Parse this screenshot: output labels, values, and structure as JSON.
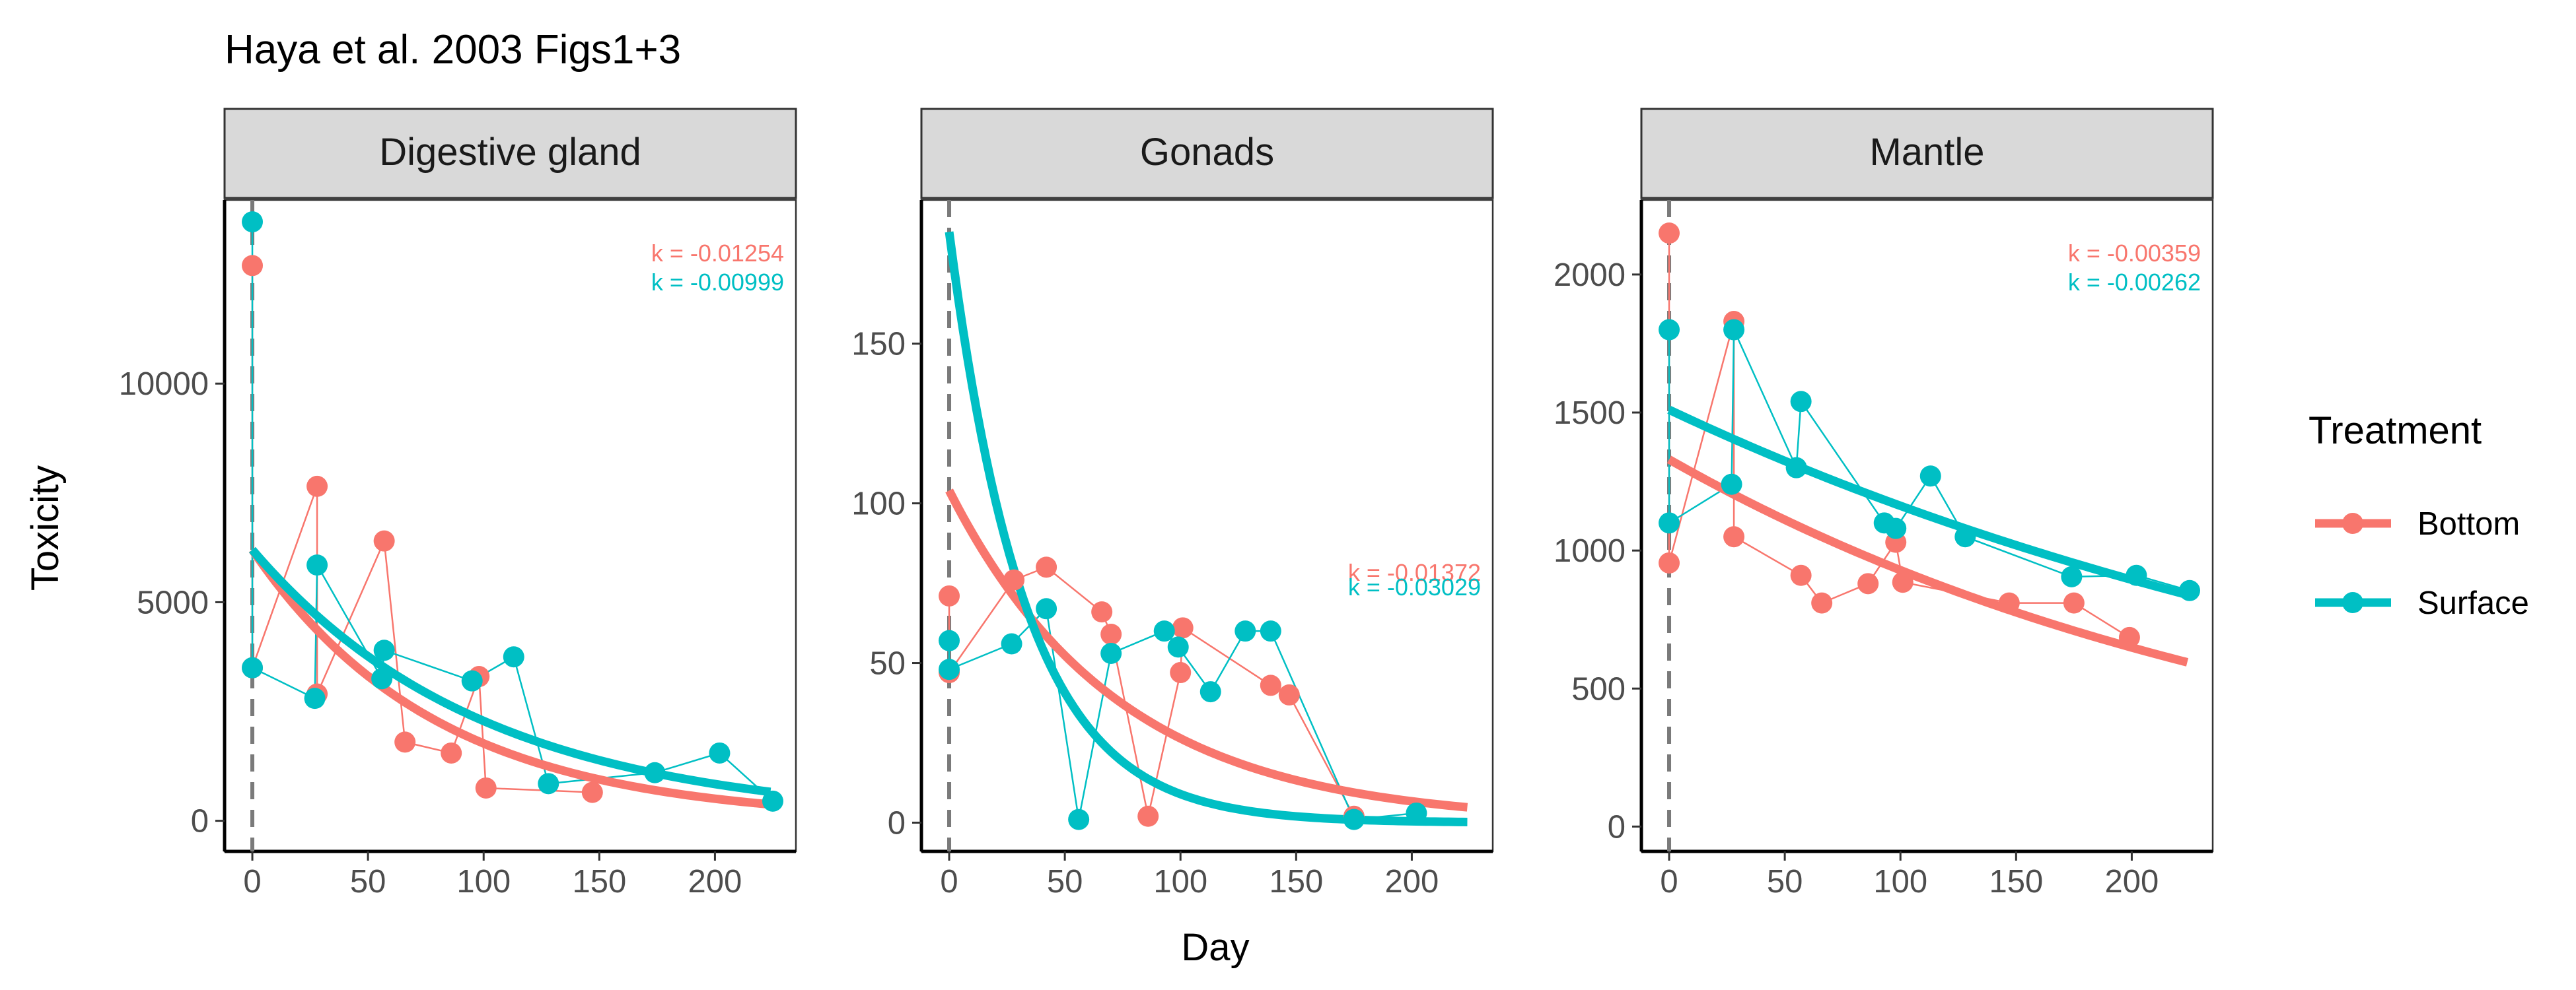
{
  "chart_data": {
    "type": "line",
    "title": "Haya et al. 2003 Figs1+3",
    "xlabel": "Day",
    "ylabel": "Toxicity",
    "legend": {
      "title": "Treatment",
      "placement": "right"
    },
    "series_styles": [
      {
        "name": "Bottom",
        "color": "#F8766D"
      },
      {
        "name": "Surface",
        "color": "#00BFC4"
      }
    ],
    "panels": [
      {
        "strip": "Digestive gland",
        "xlim": [
          -12,
          235
        ],
        "xticks": [
          0,
          50,
          100,
          150,
          200
        ],
        "ylim": [
          -700,
          14200
        ],
        "yticks": [
          0,
          5000,
          10000
        ],
        "series": [
          {
            "name": "Bottom",
            "points": [
              [
                0,
                12700
              ],
              [
                0,
                3500
              ],
              [
                28,
                7650
              ],
              [
                28,
                2900
              ],
              [
                57,
                6400
              ],
              [
                66,
                1800
              ],
              [
                86,
                1550
              ],
              [
                98,
                3300
              ],
              [
                101,
                750
              ],
              [
                147,
                650
              ]
            ],
            "fit": {
              "a": 6200,
              "k": -0.01254
            }
          },
          {
            "name": "Surface",
            "points": [
              [
                0,
                13700
              ],
              [
                0,
                3500
              ],
              [
                27,
                2800
              ],
              [
                28,
                5850
              ],
              [
                56,
                3250
              ],
              [
                57,
                3900
              ],
              [
                95,
                3200
              ],
              [
                113,
                3750
              ],
              [
                128,
                850
              ],
              [
                174,
                1100
              ],
              [
                202,
                1550
              ],
              [
                225,
                450
              ]
            ],
            "fit": {
              "a": 6200,
              "k": -0.00999
            }
          }
        ],
        "annotations": [
          "k = -0.01254",
          "k = -0.00999"
        ]
      },
      {
        "strip": "Gonads",
        "xlim": [
          -12,
          235
        ],
        "xticks": [
          0,
          50,
          100,
          150,
          200
        ],
        "ylim": [
          -9,
          195
        ],
        "yticks": [
          0,
          50,
          100,
          150
        ],
        "series": [
          {
            "name": "Bottom",
            "points": [
              [
                0,
                71
              ],
              [
                0,
                47
              ],
              [
                28,
                76
              ],
              [
                42,
                80
              ],
              [
                66,
                66
              ],
              [
                70,
                59
              ],
              [
                86,
                2
              ],
              [
                100,
                47
              ],
              [
                101,
                61
              ],
              [
                139,
                43
              ],
              [
                147,
                40
              ],
              [
                175,
                2
              ]
            ],
            "fit": {
              "a": 104,
              "k": -0.01372
            }
          },
          {
            "name": "Surface",
            "points": [
              [
                0,
                57
              ],
              [
                0,
                48
              ],
              [
                27,
                56
              ],
              [
                42,
                67
              ],
              [
                56,
                1
              ],
              [
                70,
                53
              ],
              [
                93,
                60
              ],
              [
                99,
                55
              ],
              [
                113,
                41
              ],
              [
                128,
                60
              ],
              [
                139,
                60
              ],
              [
                175,
                1
              ],
              [
                202,
                3
              ]
            ],
            "fit": {
              "a": 185,
              "k": -0.03029
            }
          }
        ],
        "annotations": [
          "k = -0.01372",
          "k = -0.03029"
        ]
      },
      {
        "strip": "Mantle",
        "xlim": [
          -12,
          235
        ],
        "xticks": [
          0,
          50,
          100,
          150,
          200
        ],
        "ylim": [
          -90,
          2270
        ],
        "yticks": [
          0,
          500,
          1000,
          1500,
          2000
        ],
        "series": [
          {
            "name": "Bottom",
            "points": [
              [
                0,
                2150
              ],
              [
                0,
                955
              ],
              [
                28,
                1830
              ],
              [
                28,
                1050
              ],
              [
                57,
                910
              ],
              [
                66,
                810
              ],
              [
                86,
                880
              ],
              [
                98,
                1030
              ],
              [
                101,
                885
              ],
              [
                147,
                810
              ],
              [
                175,
                810
              ],
              [
                199,
                685
              ]
            ],
            "fit": {
              "a": 1330,
              "k": -0.00359
            }
          },
          {
            "name": "Surface",
            "points": [
              [
                0,
                1800
              ],
              [
                0,
                1100
              ],
              [
                27,
                1240
              ],
              [
                28,
                1800
              ],
              [
                55,
                1300
              ],
              [
                57,
                1540
              ],
              [
                93,
                1100
              ],
              [
                98,
                1080
              ],
              [
                113,
                1270
              ],
              [
                128,
                1050
              ],
              [
                174,
                905
              ],
              [
                202,
                910
              ],
              [
                225,
                855
              ]
            ],
            "fit": {
              "a": 1510,
              "k": -0.00262
            }
          }
        ],
        "annotations": [
          "k = -0.00359",
          "k = -0.00262"
        ]
      }
    ]
  }
}
